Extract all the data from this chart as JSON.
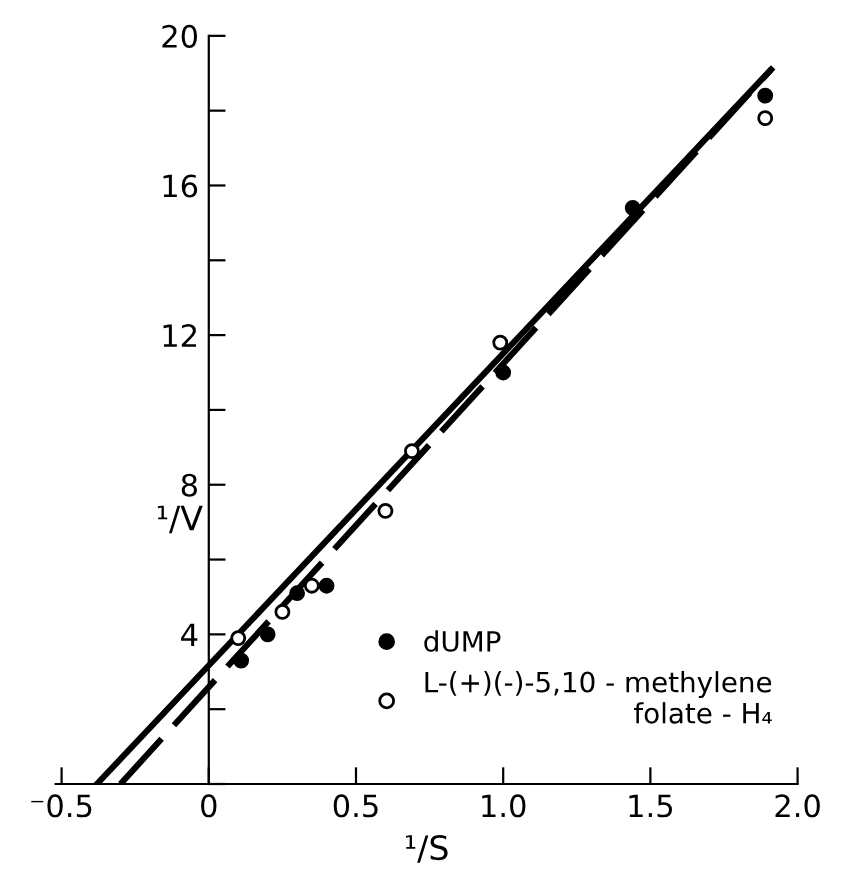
{
  "chart_data": {
    "type": "scatter",
    "xlabel": "¹/S",
    "ylabel": "¹/V",
    "xlim": [
      -0.52,
      2.0
    ],
    "ylim": [
      0,
      20
    ],
    "xticks": [
      {
        "value": -0.5,
        "label": "⁻0.5"
      },
      0,
      {
        "value": 0.5,
        "label": "0.5"
      },
      {
        "value": 1.0,
        "label": "1.0"
      },
      {
        "value": 1.5,
        "label": "1.5"
      },
      {
        "value": 2.0,
        "label": "2.0"
      }
    ],
    "yticks": [
      {
        "value": 0,
        "label": null
      },
      {
        "value": 2,
        "label": null
      },
      4,
      {
        "value": 6,
        "label": null
      },
      8,
      {
        "value": 10,
        "label": null
      },
      12,
      {
        "value": 14,
        "label": null
      },
      16,
      {
        "value": 18,
        "label": null
      },
      20
    ],
    "grid": false,
    "legend": "bottom right",
    "series": [
      {
        "name": "dUMP",
        "marker": "circle",
        "color": "#000000",
        "x": [
          0.11,
          0.2,
          0.3,
          0.4,
          1.0,
          1.44,
          1.89
        ],
        "values": [
          3.3,
          4.0,
          5.1,
          5.3,
          11.0,
          15.4,
          18.4
        ]
      },
      {
        "name": "L-(+)(-)-5,10 - methylene\nfolate - H₄",
        "marker": "circle",
        "color": "#000000",
        "x": [
          0.1,
          0.25,
          0.35,
          0.6,
          0.69,
          0.99,
          1.89
        ],
        "values": [
          3.9,
          4.6,
          5.3,
          7.3,
          8.9,
          11.8,
          17.8
        ]
      },
      {
        "type": "line",
        "color": "#000000",
        "line_style": "solid",
        "x": [
          -0.38,
          1.91
        ],
        "values": [
          0,
          19.1
        ]
      },
      {
        "type": "line",
        "color": "#000000",
        "line_style": "dashed",
        "x": [
          -0.3,
          1.91
        ],
        "values": [
          0,
          19.1
        ]
      }
    ]
  }
}
